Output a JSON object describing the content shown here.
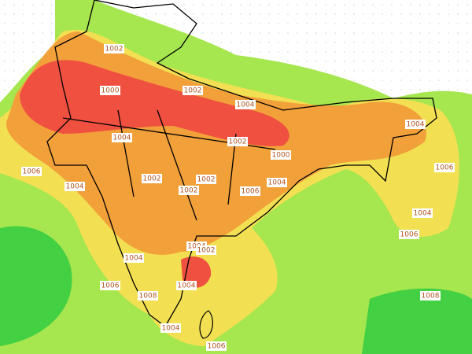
{
  "isobar_labels": [
    "1002",
    "1000",
    "1002",
    "1004",
    "1002",
    "1000",
    "1004",
    "1006",
    "1004",
    "1002",
    "1002",
    "1002",
    "1006",
    "1004",
    "1004",
    "1006",
    "1004",
    "1006",
    "1004",
    "1002",
    "1004",
    "1006",
    "1004",
    "1008",
    "1008",
    "1004",
    "1006"
  ]
}
